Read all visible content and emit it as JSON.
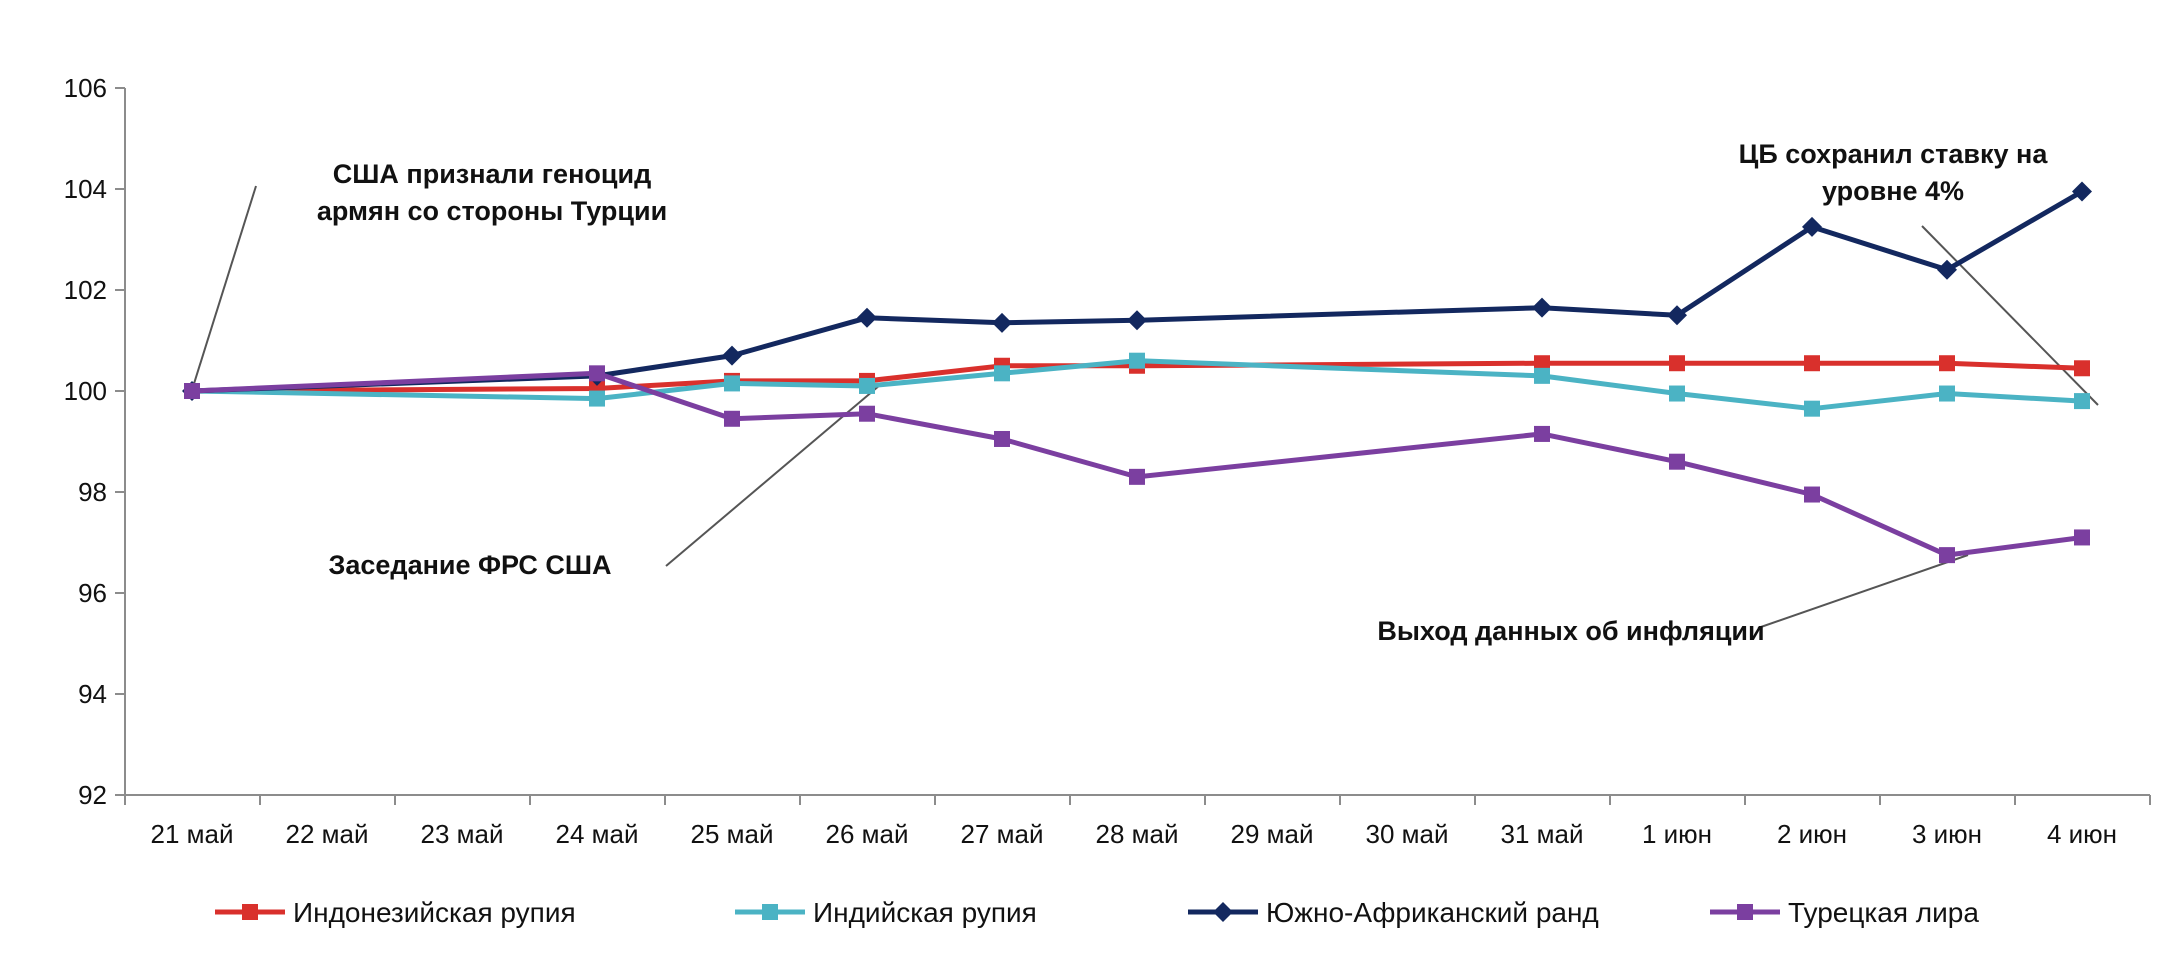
{
  "chart_data": {
    "type": "line",
    "categories": [
      "21 май",
      "22 май",
      "23 май",
      "24 май",
      "25 май",
      "26 май",
      "27 май",
      "28 май",
      "29 май",
      "30 май",
      "31 май",
      "1 июн",
      "2 июн",
      "3 июн",
      "4 июн"
    ],
    "ylim": [
      92,
      106
    ],
    "yticks": [
      "92",
      "94",
      "96",
      "98",
      "100",
      "102",
      "104",
      "106"
    ],
    "grid": false,
    "legend_position": "bottom",
    "series": [
      {
        "name": "Индонезийская рупия",
        "color": "#d9302c",
        "marker": "square",
        "points": [
          [
            0,
            100.0
          ],
          [
            3,
            100.05
          ],
          [
            4,
            100.2
          ],
          [
            5,
            100.2
          ],
          [
            6,
            100.5
          ],
          [
            7,
            100.5
          ],
          [
            10,
            100.55
          ],
          [
            11,
            100.55
          ],
          [
            12,
            100.55
          ],
          [
            13,
            100.55
          ],
          [
            14,
            100.45
          ]
        ]
      },
      {
        "name": "Индийская рупия",
        "color": "#4bb3c4",
        "marker": "square",
        "points": [
          [
            0,
            100.0
          ],
          [
            3,
            99.85
          ],
          [
            4,
            100.15
          ],
          [
            5,
            100.1
          ],
          [
            6,
            100.35
          ],
          [
            7,
            100.6
          ],
          [
            10,
            100.3
          ],
          [
            11,
            99.95
          ],
          [
            12,
            99.65
          ],
          [
            13,
            99.95
          ],
          [
            14,
            99.8
          ]
        ]
      },
      {
        "name": "Южно-Африканский ранд",
        "color": "#13285f",
        "marker": "diamond",
        "points": [
          [
            0,
            100.0
          ],
          [
            3,
            100.3
          ],
          [
            4,
            100.7
          ],
          [
            5,
            101.45
          ],
          [
            6,
            101.35
          ],
          [
            7,
            101.4
          ],
          [
            10,
            101.65
          ],
          [
            11,
            101.5
          ],
          [
            12,
            103.25
          ],
          [
            13,
            102.4
          ],
          [
            14,
            103.95
          ]
        ]
      },
      {
        "name": "Турецкая лира",
        "color": "#7b3fa0",
        "marker": "square",
        "points": [
          [
            0,
            100.0
          ],
          [
            3,
            100.35
          ],
          [
            4,
            99.45
          ],
          [
            5,
            99.55
          ],
          [
            6,
            99.05
          ],
          [
            7,
            98.3
          ],
          [
            10,
            99.15
          ],
          [
            11,
            98.6
          ],
          [
            12,
            97.95
          ],
          [
            13,
            96.75
          ],
          [
            14,
            97.1
          ]
        ]
      }
    ],
    "annotations": [
      {
        "lines": [
          "США признали геноцид",
          "армян со стороны Турции"
        ]
      },
      {
        "lines": [
          "Заседание ФРС США"
        ]
      },
      {
        "lines": [
          "ЦБ сохранил ставку на",
          "уровне 4%"
        ]
      },
      {
        "lines": [
          "Выход данных об инфляции"
        ]
      }
    ]
  }
}
